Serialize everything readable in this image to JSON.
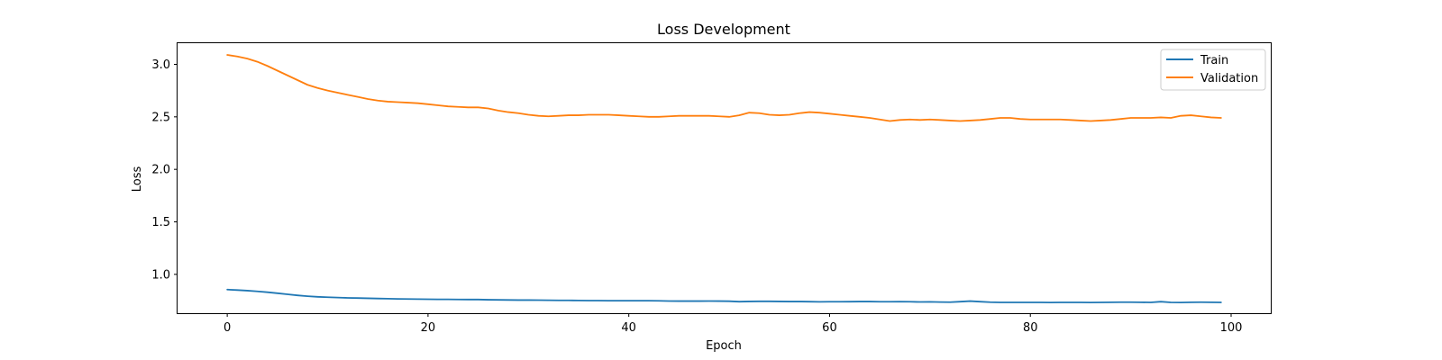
{
  "chart_data": {
    "type": "line",
    "title": "Loss Development",
    "xlabel": "Epoch",
    "ylabel": "Loss",
    "xlim": [
      -4.95,
      103.95
    ],
    "ylim": [
      0.63,
      3.21
    ],
    "xticks": [
      0,
      20,
      40,
      60,
      80,
      100
    ],
    "yticks": [
      1.0,
      1.5,
      2.0,
      2.5,
      3.0
    ],
    "ytick_labels": [
      "1.0",
      "1.5",
      "2.0",
      "2.5",
      "3.0"
    ],
    "legend": "top-right",
    "grid": false,
    "series": [
      {
        "name": "Train",
        "color": "#1f77b4",
        "x": [
          0,
          1,
          2,
          3,
          4,
          5,
          6,
          7,
          8,
          9,
          10,
          11,
          12,
          13,
          14,
          15,
          16,
          17,
          18,
          19,
          20,
          21,
          22,
          23,
          24,
          25,
          26,
          27,
          28,
          29,
          30,
          31,
          32,
          33,
          34,
          35,
          36,
          37,
          38,
          39,
          40,
          41,
          42,
          43,
          44,
          45,
          46,
          47,
          48,
          49,
          50,
          51,
          52,
          53,
          54,
          55,
          56,
          57,
          58,
          59,
          60,
          61,
          62,
          63,
          64,
          65,
          66,
          67,
          68,
          69,
          70,
          71,
          72,
          73,
          74,
          75,
          76,
          77,
          78,
          79,
          80,
          81,
          82,
          83,
          84,
          85,
          86,
          87,
          88,
          89,
          90,
          91,
          92,
          93,
          94,
          95,
          96,
          97,
          98,
          99
        ],
        "values": [
          0.855,
          0.85,
          0.845,
          0.838,
          0.83,
          0.82,
          0.81,
          0.8,
          0.792,
          0.786,
          0.782,
          0.779,
          0.776,
          0.774,
          0.772,
          0.77,
          0.768,
          0.766,
          0.765,
          0.764,
          0.763,
          0.762,
          0.762,
          0.761,
          0.76,
          0.76,
          0.758,
          0.757,
          0.756,
          0.755,
          0.755,
          0.754,
          0.753,
          0.752,
          0.752,
          0.751,
          0.75,
          0.75,
          0.749,
          0.749,
          0.749,
          0.749,
          0.749,
          0.748,
          0.746,
          0.745,
          0.745,
          0.745,
          0.746,
          0.745,
          0.744,
          0.74,
          0.742,
          0.743,
          0.743,
          0.742,
          0.741,
          0.741,
          0.74,
          0.738,
          0.739,
          0.739,
          0.74,
          0.741,
          0.741,
          0.739,
          0.739,
          0.74,
          0.739,
          0.737,
          0.738,
          0.736,
          0.735,
          0.74,
          0.745,
          0.74,
          0.735,
          0.733,
          0.733,
          0.733,
          0.733,
          0.733,
          0.732,
          0.733,
          0.733,
          0.733,
          0.732,
          0.733,
          0.734,
          0.735,
          0.735,
          0.734,
          0.733,
          0.74,
          0.733,
          0.732,
          0.734,
          0.735,
          0.734,
          0.733
        ]
      },
      {
        "name": "Validation",
        "color": "#ff7f0e",
        "x": [
          0,
          1,
          2,
          3,
          4,
          5,
          6,
          7,
          8,
          9,
          10,
          11,
          12,
          13,
          14,
          15,
          16,
          17,
          18,
          19,
          20,
          21,
          22,
          23,
          24,
          25,
          26,
          27,
          28,
          29,
          30,
          31,
          32,
          33,
          34,
          35,
          36,
          37,
          38,
          39,
          40,
          41,
          42,
          43,
          44,
          45,
          46,
          47,
          48,
          49,
          50,
          51,
          52,
          53,
          54,
          55,
          56,
          57,
          58,
          59,
          60,
          61,
          62,
          63,
          64,
          65,
          66,
          67,
          68,
          69,
          70,
          71,
          72,
          73,
          74,
          75,
          76,
          77,
          78,
          79,
          80,
          81,
          82,
          83,
          84,
          85,
          86,
          87,
          88,
          89,
          90,
          91,
          92,
          93,
          94,
          95,
          96,
          97,
          98,
          99
        ],
        "values": [
          3.09,
          3.075,
          3.055,
          3.025,
          2.985,
          2.94,
          2.895,
          2.85,
          2.805,
          2.775,
          2.75,
          2.73,
          2.71,
          2.69,
          2.67,
          2.655,
          2.645,
          2.64,
          2.635,
          2.63,
          2.62,
          2.61,
          2.6,
          2.595,
          2.59,
          2.59,
          2.58,
          2.56,
          2.545,
          2.535,
          2.52,
          2.51,
          2.505,
          2.51,
          2.515,
          2.515,
          2.52,
          2.52,
          2.52,
          2.515,
          2.51,
          2.505,
          2.5,
          2.5,
          2.505,
          2.51,
          2.51,
          2.51,
          2.51,
          2.505,
          2.5,
          2.515,
          2.54,
          2.535,
          2.52,
          2.515,
          2.52,
          2.535,
          2.545,
          2.54,
          2.53,
          2.52,
          2.51,
          2.5,
          2.49,
          2.475,
          2.46,
          2.47,
          2.475,
          2.47,
          2.475,
          2.47,
          2.465,
          2.46,
          2.465,
          2.47,
          2.48,
          2.49,
          2.49,
          2.48,
          2.475,
          2.475,
          2.475,
          2.475,
          2.47,
          2.465,
          2.46,
          2.465,
          2.47,
          2.48,
          2.49,
          2.49,
          2.49,
          2.495,
          2.49,
          2.51,
          2.515,
          2.505,
          2.495,
          2.49
        ]
      }
    ]
  }
}
